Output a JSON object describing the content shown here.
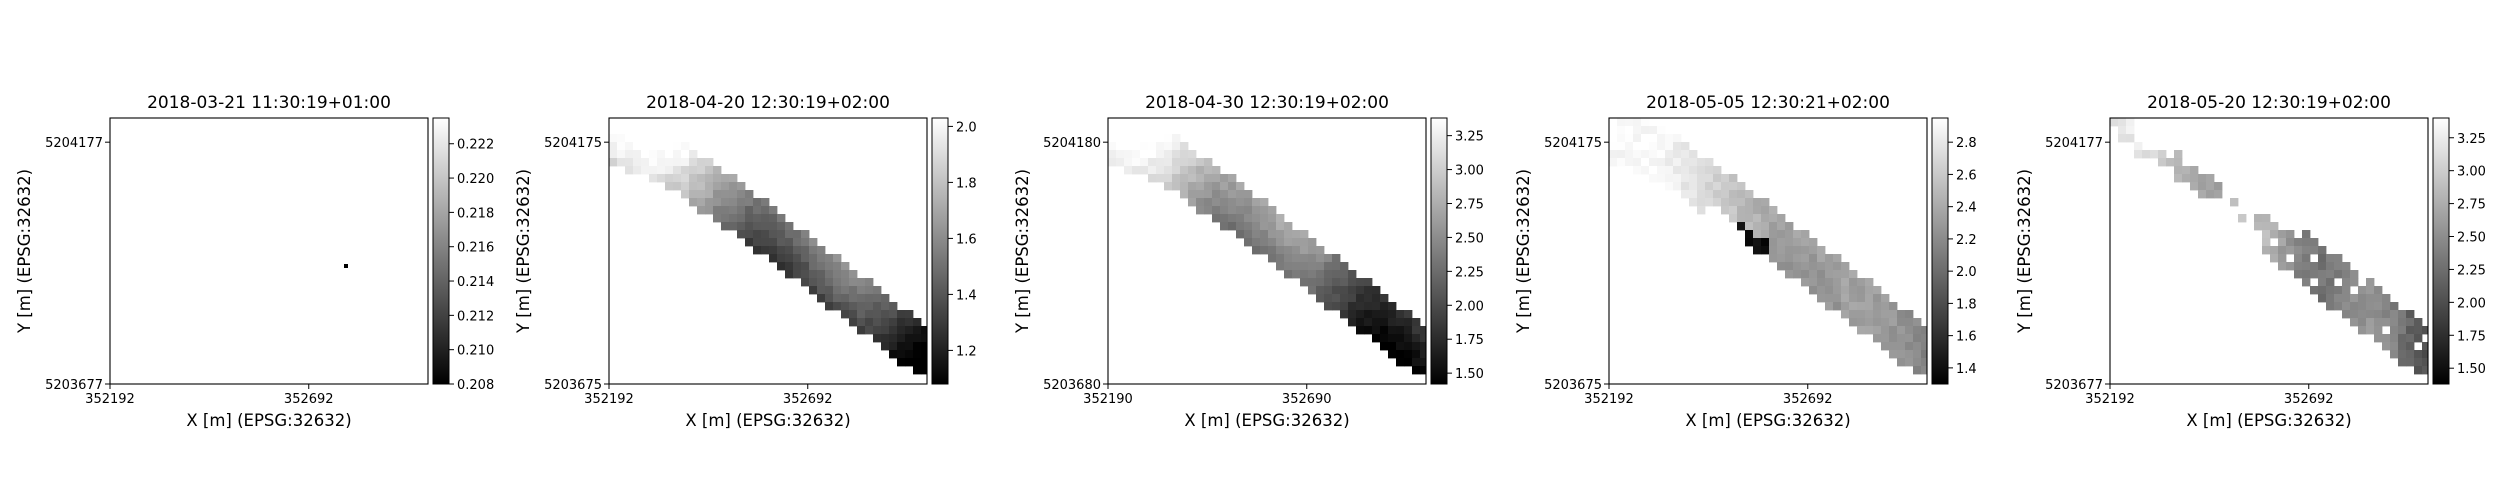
{
  "chart_data": [
    {
      "type": "heatmap",
      "title": "2018-03-21 11:30:19+01:00",
      "xlabel": "X [m] (EPSG:32632)",
      "ylabel": "Y [m] (EPSG:32632)",
      "x_ticks": [
        "352192",
        "352692"
      ],
      "y_ticks": [
        "5204177",
        "5203677"
      ],
      "xlim": [
        352192,
        352992
      ],
      "ylim": [
        5203677,
        5204227
      ],
      "colormap": "gray",
      "colorbar_ticks": [
        "0.208",
        "0.210",
        "0.212",
        "0.214",
        "0.216",
        "0.218",
        "0.220",
        "0.222"
      ],
      "colorbar_range": [
        0.208,
        0.2235
      ],
      "grid": false
    },
    {
      "type": "heatmap",
      "title": "2018-04-20 12:30:19+02:00",
      "xlabel": "X [m] (EPSG:32632)",
      "ylabel": "Y [m] (EPSG:32632)",
      "x_ticks": [
        "352192",
        "352692"
      ],
      "y_ticks": [
        "5204175",
        "5203675"
      ],
      "xlim": [
        352192,
        352992
      ],
      "ylim": [
        5203675,
        5204225
      ],
      "colormap": "gray",
      "colorbar_ticks": [
        "1.2",
        "1.4",
        "1.6",
        "1.8",
        "2.0"
      ],
      "colorbar_range": [
        1.08,
        2.03
      ],
      "grid": false
    },
    {
      "type": "heatmap",
      "title": "2018-04-30 12:30:19+02:00",
      "xlabel": "X [m] (EPSG:32632)",
      "ylabel": "Y [m] (EPSG:32632)",
      "x_ticks": [
        "352190",
        "352690"
      ],
      "y_ticks": [
        "5204180",
        "5203680"
      ],
      "xlim": [
        352190,
        352990
      ],
      "ylim": [
        5203680,
        5204230
      ],
      "colormap": "gray",
      "colorbar_ticks": [
        "1.50",
        "1.75",
        "2.00",
        "2.25",
        "2.50",
        "2.75",
        "3.00",
        "3.25"
      ],
      "colorbar_range": [
        1.42,
        3.38
      ],
      "grid": false
    },
    {
      "type": "heatmap",
      "title": "2018-05-05 12:30:21+02:00",
      "xlabel": "X [m] (EPSG:32632)",
      "ylabel": "Y [m] (EPSG:32632)",
      "x_ticks": [
        "352192",
        "352692"
      ],
      "y_ticks": [
        "5204175",
        "5203675"
      ],
      "xlim": [
        352192,
        352992
      ],
      "ylim": [
        5203675,
        5204225
      ],
      "colormap": "gray",
      "colorbar_ticks": [
        "1.4",
        "1.6",
        "1.8",
        "2.0",
        "2.2",
        "2.4",
        "2.6",
        "2.8"
      ],
      "colorbar_range": [
        1.3,
        2.95
      ],
      "grid": false
    },
    {
      "type": "heatmap",
      "title": "2018-05-20 12:30:19+02:00",
      "xlabel": "X [m] (EPSG:32632)",
      "ylabel": "Y [m] (EPSG:32632)",
      "x_ticks": [
        "352192",
        "352692"
      ],
      "y_ticks": [
        "5204177",
        "5203677"
      ],
      "xlim": [
        352192,
        352992
      ],
      "ylim": [
        5203677,
        5204227
      ],
      "colormap": "gray",
      "colorbar_ticks": [
        "1.50",
        "1.75",
        "2.00",
        "2.25",
        "2.50",
        "2.75",
        "3.00",
        "3.25"
      ],
      "colorbar_range": [
        1.38,
        3.4
      ],
      "grid": false
    }
  ]
}
